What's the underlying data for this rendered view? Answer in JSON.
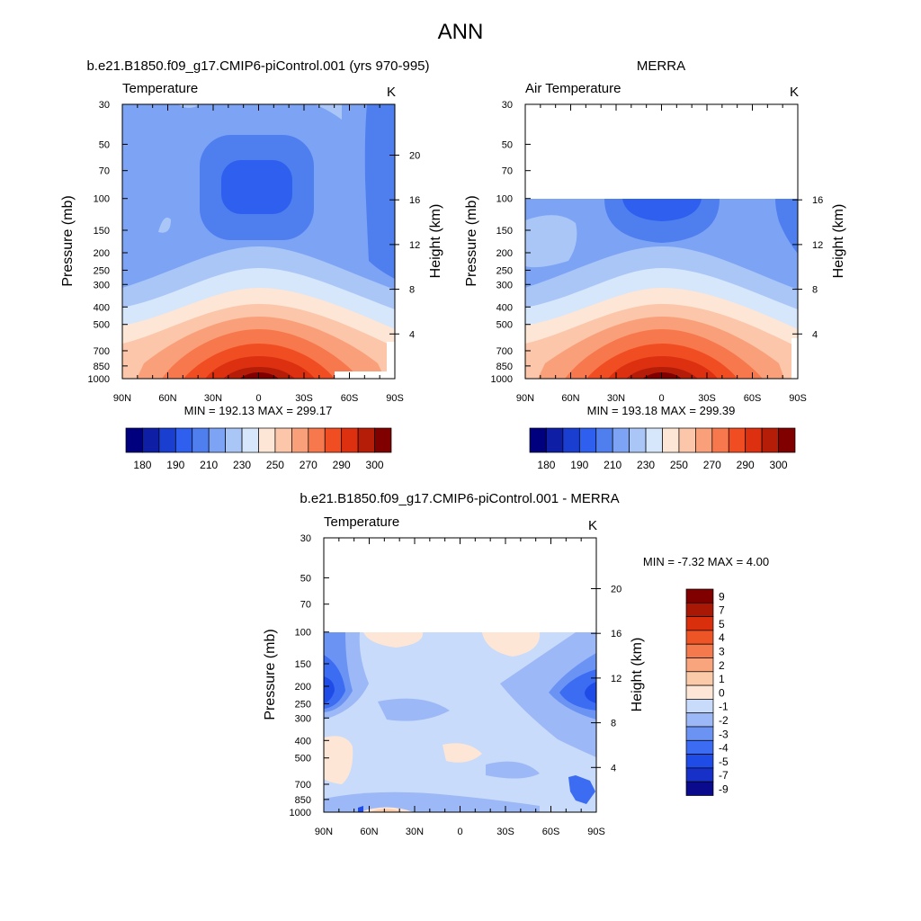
{
  "figure_title": "ANN",
  "colors": {
    "abs": [
      "#00007f",
      "#0e1ea5",
      "#1a3fd0",
      "#2e5fef",
      "#4f7fef",
      "#7da3f5",
      "#a9c6f7",
      "#d6e6fb",
      "#fde6d6",
      "#fbc6a9",
      "#f9a07a",
      "#f7784d",
      "#f04e22",
      "#dc3010",
      "#b61d09",
      "#800000"
    ],
    "diff": [
      "#0a0a8c",
      "#1630c8",
      "#1f4ce6",
      "#3b6cf2",
      "#6b93f4",
      "#9cb8f6",
      "#c9dbfa",
      "#fde6d6",
      "#fbcaa8",
      "#f8a47c",
      "#f47a4d",
      "#ee5526",
      "#d92f0c",
      "#a91805",
      "#800000"
    ]
  },
  "chart_data": [
    {
      "type": "heatmap",
      "title": "b.e21.B1850.f09_g17.CMIP6-piControl.001 (yrs 970-995)",
      "corner_left": "Temperature",
      "corner_right": "K",
      "ylabel": "Pressure (mb)",
      "ylabel_right": "Height (km)",
      "x_ticks": [
        "90N",
        "60N",
        "30N",
        "0",
        "30S",
        "60S",
        "90S"
      ],
      "y_ticks": [
        "30",
        "50",
        "70",
        "100",
        "150",
        "200",
        "250",
        "300",
        "400",
        "500",
        "700",
        "850",
        "1000"
      ],
      "y_ticks_right": [
        "20",
        "16",
        "12",
        "8",
        "4"
      ],
      "stats": "MIN = 192.13  MAX = 299.17",
      "levels": [
        "180",
        "190",
        "210",
        "230",
        "250",
        "270",
        "290",
        "300"
      ],
      "ylim_mb": [
        1000,
        30
      ]
    },
    {
      "type": "heatmap",
      "title": "MERRA",
      "corner_left": "Air Temperature",
      "corner_right": "K",
      "ylabel": "Pressure (mb)",
      "ylabel_right": "Height (km)",
      "x_ticks": [
        "90N",
        "60N",
        "30N",
        "0",
        "30S",
        "60S",
        "90S"
      ],
      "y_ticks": [
        "30",
        "50",
        "70",
        "100",
        "150",
        "200",
        "250",
        "300",
        "400",
        "500",
        "700",
        "850",
        "1000"
      ],
      "y_ticks_right": [
        "16",
        "12",
        "8",
        "4"
      ],
      "stats": "MIN = 193.18  MAX = 299.39",
      "levels": [
        "180",
        "190",
        "210",
        "230",
        "250",
        "270",
        "290",
        "300"
      ],
      "ylim_mb": [
        1000,
        30
      ]
    },
    {
      "type": "heatmap",
      "title": "b.e21.B1850.f09_g17.CMIP6-piControl.001 - MERRA",
      "corner_left": "Temperature",
      "corner_right": "K",
      "ylabel": "Pressure (mb)",
      "ylabel_right": "Height (km)",
      "x_ticks": [
        "90N",
        "60N",
        "30N",
        "0",
        "30S",
        "60S",
        "90S"
      ],
      "y_ticks": [
        "30",
        "50",
        "70",
        "100",
        "150",
        "200",
        "250",
        "300",
        "400",
        "500",
        "700",
        "850",
        "1000"
      ],
      "y_ticks_right": [
        "20",
        "16",
        "12",
        "8",
        "4"
      ],
      "stats": "MIN =  -7.32  MAX =   4.00",
      "levels": [
        "9",
        "7",
        "5",
        "4",
        "3",
        "2",
        "1",
        "0",
        "-1",
        "-2",
        "-3",
        "-4",
        "-5",
        "-7",
        "-9"
      ],
      "ylim_mb": [
        1000,
        30
      ]
    }
  ]
}
